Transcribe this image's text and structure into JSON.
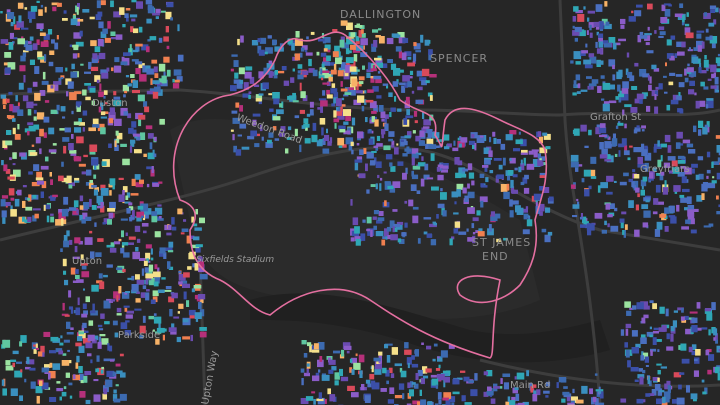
{
  "map": {
    "labels": [
      "DALLINGTON",
      "SPENCER",
      "Duston",
      "Upton",
      "Parkside",
      "Sixfields Stadium",
      "Grafton St",
      "Greyfriars",
      "ST JAMES",
      "END",
      "Main Rd",
      "Weedon Road",
      "Upton Way"
    ]
  }
}
